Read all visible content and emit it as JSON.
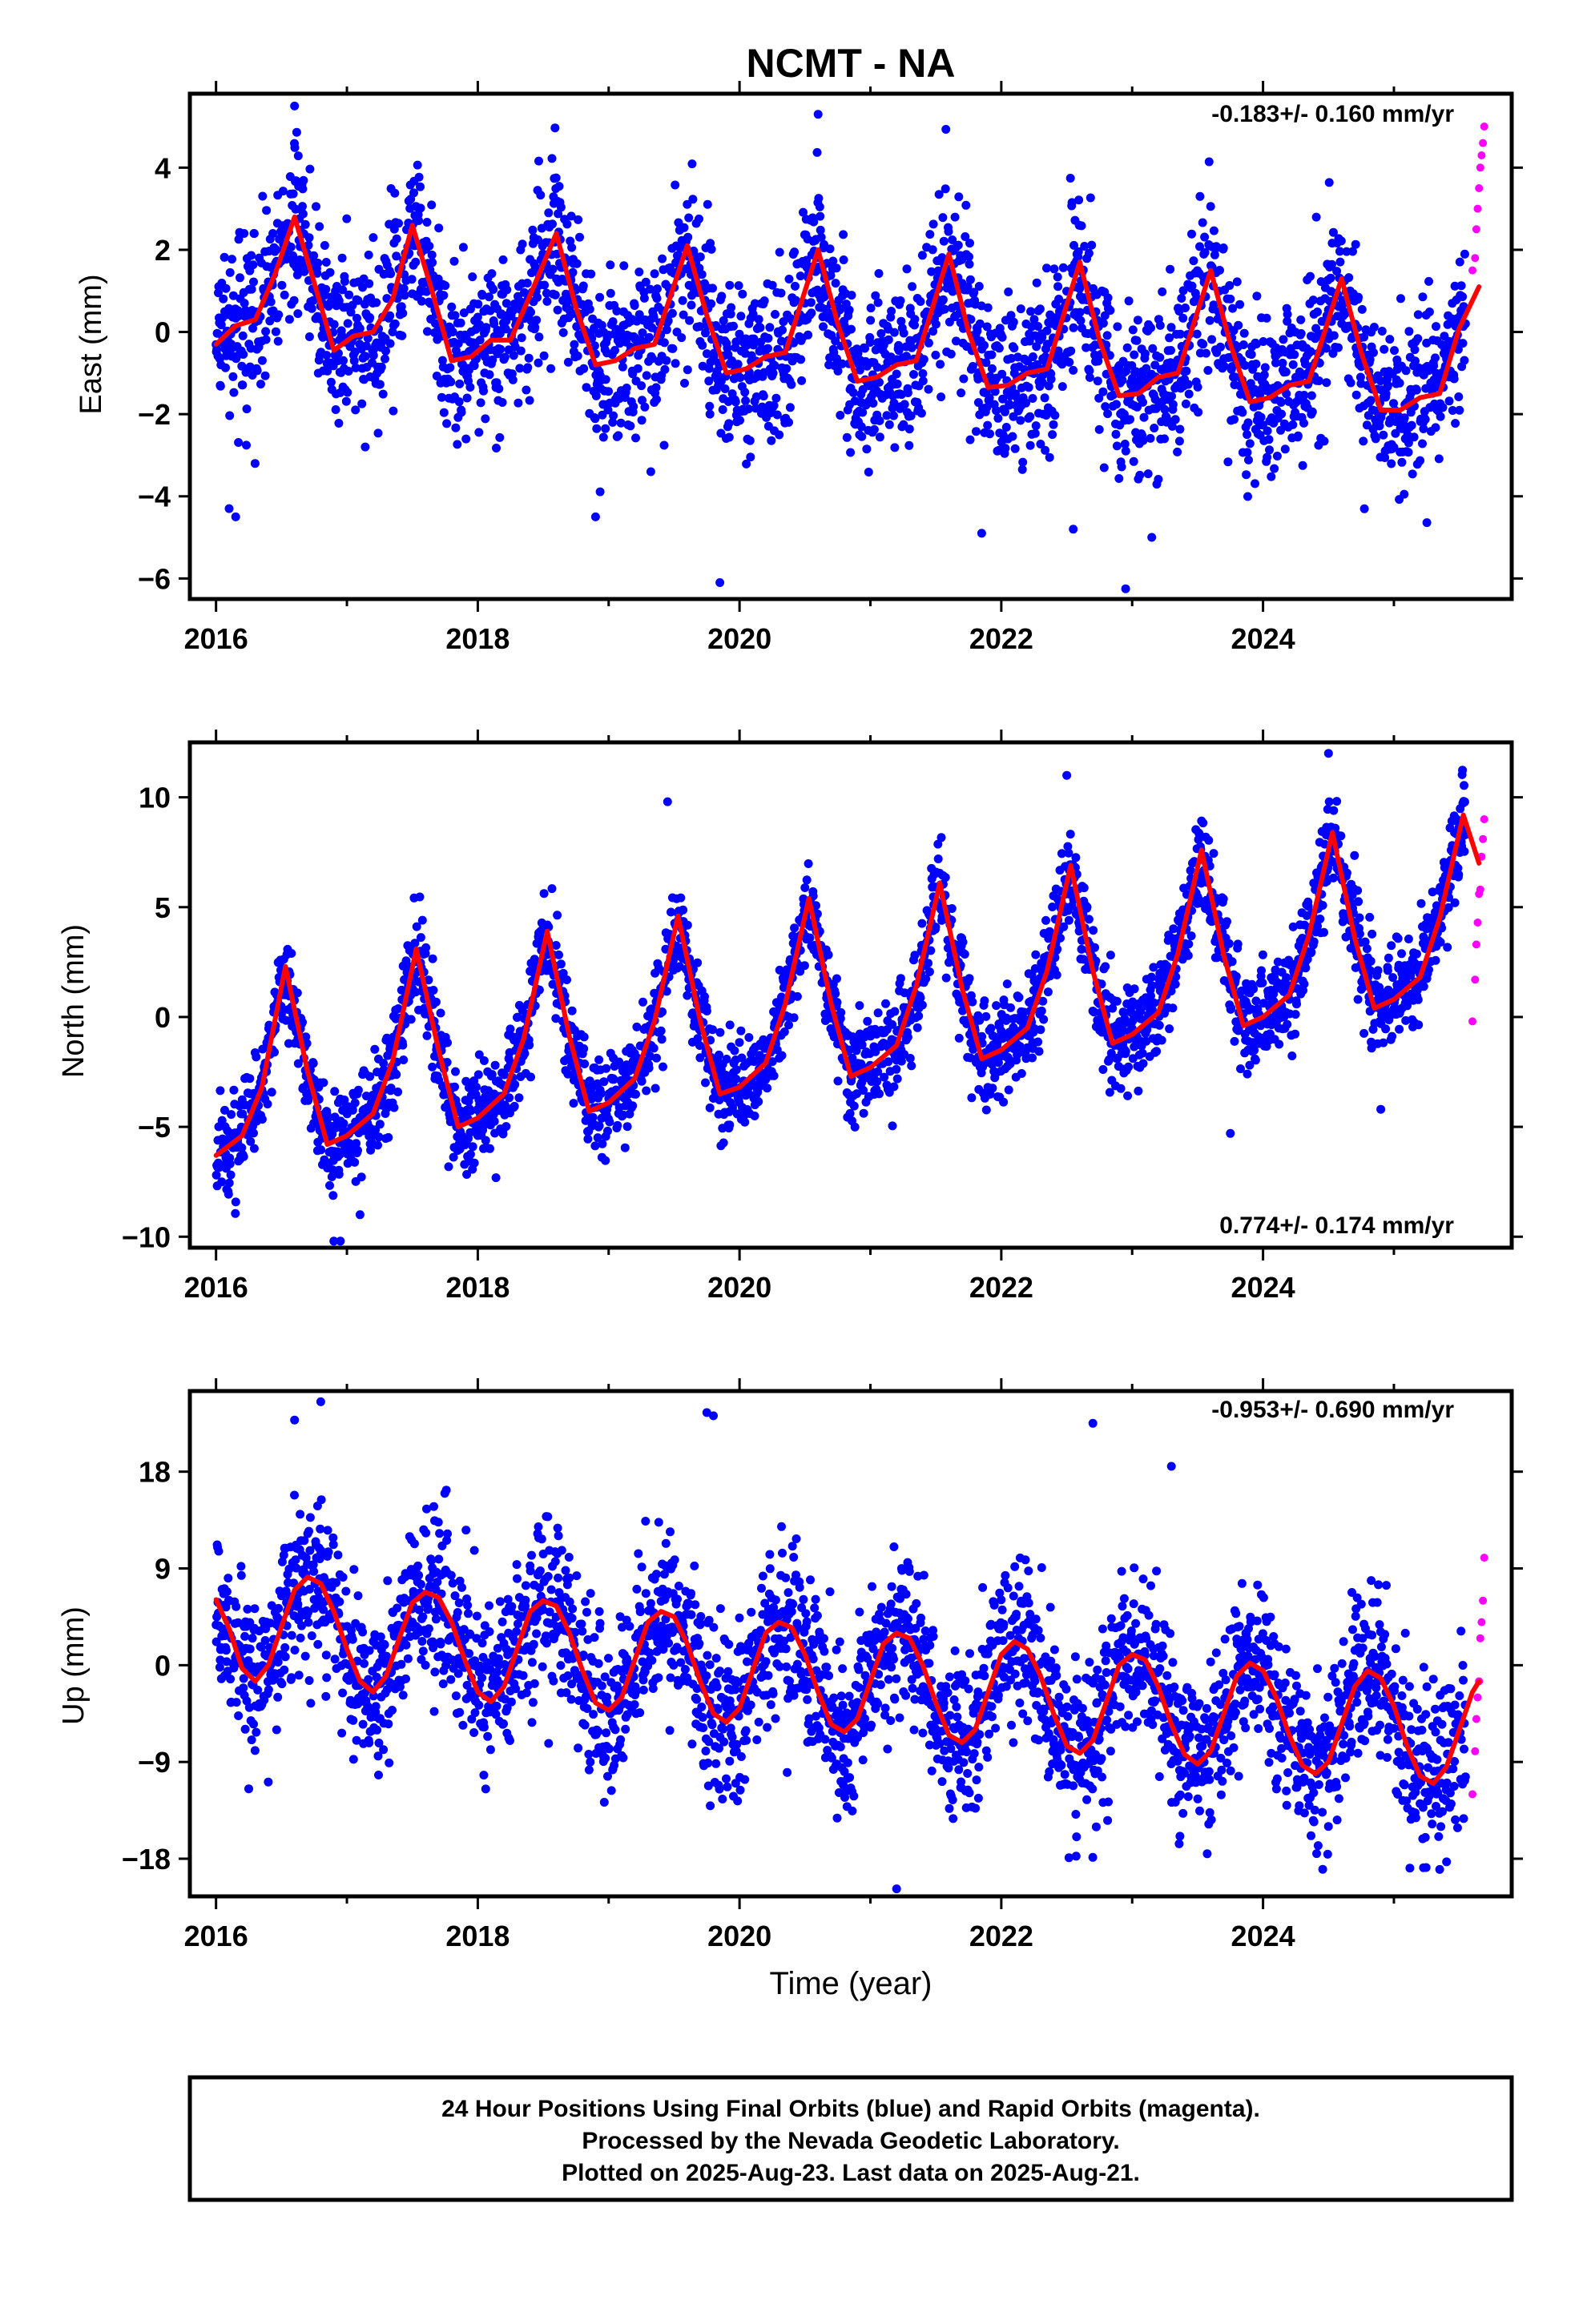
{
  "title": "NCMT - NA",
  "footer": {
    "line1": "24 Hour Positions Using Final Orbits (blue) and Rapid Orbits (magenta).",
    "line2": "Processed by the Nevada Geodetic Laboratory.",
    "line3": "Plotted on 2025-Aug-23. Last data on 2025-Aug-21."
  },
  "colors": {
    "final_orbits": "#0000ff",
    "rapid_orbits": "#ff00ff",
    "model": "#ff0000"
  },
  "chart_data": [
    {
      "type": "scatter",
      "ylabel": "East (mm)",
      "xlabel": "",
      "rate": "-0.183+/- 0.160 mm/yr",
      "rate_position": "top-right",
      "xlim": [
        2015.8,
        2025.9
      ],
      "ylim": [
        -6.5,
        5.8
      ],
      "xticks": [
        2016,
        2018,
        2020,
        2022,
        2024
      ],
      "yticks": [
        -6,
        -4,
        -2,
        0,
        2,
        4
      ],
      "ytick_labels": [
        "−6",
        "−4",
        "−2",
        "0",
        "2",
        "4"
      ],
      "series": [
        {
          "role": "final orbits",
          "color": "#0000ff",
          "x_range": [
            2016.0,
            2025.55
          ],
          "approx_points": 3300,
          "annual_amplitude": 1.6,
          "peak_month": 8.0,
          "semiannual_amplitude": 0.6,
          "scatter_sd": 1.0,
          "outliers": [
            [
              2016.15,
              -4.5
            ],
            [
              2016.1,
              -4.3
            ],
            [
              2019.85,
              -6.1
            ],
            [
              2022.95,
              -6.25
            ],
            [
              2021.85,
              -4.9
            ],
            [
              2018.9,
              -4.5
            ],
            [
              2022.55,
              -4.8
            ],
            [
              2023.15,
              -5.0
            ],
            [
              2016.6,
              5.5
            ],
            [
              2020.6,
              5.3
            ]
          ]
        },
        {
          "role": "rapid orbits",
          "color": "#ff00ff",
          "x": [
            2025.6,
            2025.62,
            2025.63,
            2025.64,
            2025.65,
            2025.66,
            2025.67,
            2025.68,
            2025.69
          ],
          "y": [
            1.5,
            1.8,
            2.5,
            3.0,
            3.5,
            4.0,
            4.3,
            4.6,
            5.0
          ]
        }
      ],
      "model_curve": {
        "color": "#ff0000",
        "x": [
          2016.0,
          2016.15,
          2016.3,
          2016.45,
          2016.6,
          2016.75,
          2016.9,
          2017.05,
          2017.2,
          2017.35,
          2017.5,
          2017.65,
          2017.8,
          2017.95,
          2018.1,
          2018.25,
          2018.4,
          2018.6,
          2018.75,
          2018.9,
          2019.05,
          2019.2,
          2019.35,
          2019.6,
          2019.75,
          2019.9,
          2020.05,
          2020.2,
          2020.35,
          2020.6,
          2020.75,
          2020.9,
          2021.05,
          2021.2,
          2021.35,
          2021.6,
          2021.75,
          2021.9,
          2022.05,
          2022.2,
          2022.35,
          2022.6,
          2022.75,
          2022.9,
          2023.05,
          2023.2,
          2023.35,
          2023.6,
          2023.75,
          2023.9,
          2024.05,
          2024.2,
          2024.35,
          2024.6,
          2024.75,
          2024.9,
          2025.05,
          2025.2,
          2025.35,
          2025.5,
          2025.65
        ],
        "y": [
          -0.3,
          0.15,
          0.3,
          1.4,
          2.8,
          1.2,
          -0.45,
          -0.1,
          0.0,
          0.8,
          2.6,
          1.0,
          -0.7,
          -0.6,
          -0.2,
          -0.2,
          0.9,
          2.4,
          0.6,
          -0.8,
          -0.7,
          -0.4,
          -0.3,
          2.1,
          0.4,
          -1.0,
          -0.9,
          -0.6,
          -0.5,
          2.0,
          0.2,
          -1.2,
          -1.1,
          -0.8,
          -0.7,
          1.9,
          0.0,
          -1.35,
          -1.3,
          -1.0,
          -0.9,
          1.7,
          -0.2,
          -1.55,
          -1.5,
          -1.1,
          -1.0,
          1.5,
          -0.3,
          -1.7,
          -1.6,
          -1.3,
          -1.2,
          1.3,
          -0.5,
          -1.9,
          -1.9,
          -1.6,
          -1.5,
          0.1,
          1.1
        ]
      }
    },
    {
      "type": "scatter",
      "ylabel": "North (mm)",
      "xlabel": "",
      "rate": "0.774+/- 0.174 mm/yr",
      "rate_position": "bottom-right",
      "xlim": [
        2015.8,
        2025.9
      ],
      "ylim": [
        -10.5,
        12.5
      ],
      "xticks": [
        2016,
        2018,
        2020,
        2022,
        2024
      ],
      "yticks": [
        -10,
        -5,
        0,
        5,
        10
      ],
      "ytick_labels": [
        "−10",
        "−5",
        "0",
        "5",
        "10"
      ],
      "series": [
        {
          "role": "final orbits",
          "color": "#0000ff",
          "x_range": [
            2016.0,
            2025.55
          ],
          "approx_points": 3300,
          "annual_amplitude": 4.2,
          "peak_month": 7.0,
          "semiannual_amplitude": 1.0,
          "scatter_sd": 1.1,
          "outliers": [
            [
              2016.9,
              -10.2
            ],
            [
              2016.95,
              -10.2
            ],
            [
              2017.1,
              -9.0
            ],
            [
              2019.45,
              9.8
            ],
            [
              2022.5,
              11.0
            ],
            [
              2024.5,
              12.0
            ],
            [
              2024.9,
              -4.2
            ],
            [
              2023.75,
              -5.3
            ]
          ]
        },
        {
          "role": "rapid orbits",
          "color": "#ff00ff",
          "x": [
            2025.6,
            2025.62,
            2025.63,
            2025.64,
            2025.65,
            2025.66,
            2025.67,
            2025.68,
            2025.69
          ],
          "y": [
            -0.2,
            1.7,
            3.3,
            4.3,
            5.6,
            5.8,
            7.3,
            8.1,
            9.0
          ]
        }
      ],
      "model_curve": {
        "color": "#ff0000",
        "x": [
          2016.0,
          2016.2,
          2016.35,
          2016.53,
          2016.7,
          2016.85,
          2017.0,
          2017.2,
          2017.35,
          2017.53,
          2017.7,
          2017.85,
          2018.0,
          2018.2,
          2018.35,
          2018.53,
          2018.7,
          2018.85,
          2019.0,
          2019.2,
          2019.35,
          2019.53,
          2019.7,
          2019.85,
          2020.0,
          2020.2,
          2020.35,
          2020.53,
          2020.7,
          2020.85,
          2021.0,
          2021.2,
          2021.35,
          2021.53,
          2021.7,
          2021.85,
          2022.0,
          2022.2,
          2022.35,
          2022.53,
          2022.7,
          2022.85,
          2023.0,
          2023.2,
          2023.35,
          2023.53,
          2023.7,
          2023.85,
          2024.0,
          2024.2,
          2024.35,
          2024.53,
          2024.7,
          2024.85,
          2025.0,
          2025.2,
          2025.35,
          2025.53,
          2025.65
        ],
        "y": [
          -6.3,
          -5.4,
          -3.2,
          2.3,
          -2.5,
          -5.8,
          -5.4,
          -4.4,
          -2.0,
          3.1,
          -1.5,
          -5.0,
          -4.6,
          -3.5,
          -1.0,
          3.9,
          -0.9,
          -4.3,
          -3.9,
          -2.8,
          -0.2,
          4.6,
          -0.2,
          -3.5,
          -3.2,
          -2.1,
          0.6,
          5.4,
          0.6,
          -2.7,
          -2.3,
          -1.3,
          1.4,
          6.1,
          1.3,
          -1.9,
          -1.5,
          -0.5,
          2.1,
          6.9,
          2.1,
          -1.2,
          -0.8,
          0.2,
          2.9,
          7.6,
          2.8,
          -0.4,
          0.0,
          1.0,
          3.7,
          8.4,
          3.6,
          0.4,
          0.8,
          1.8,
          4.5,
          9.2,
          7.0
        ]
      }
    },
    {
      "type": "scatter",
      "ylabel": "Up (mm)",
      "xlabel": "Time (year)",
      "rate": "-0.953+/- 0.690 mm/yr",
      "rate_position": "top-right",
      "xlim": [
        2015.8,
        2025.9
      ],
      "ylim": [
        -21.5,
        25.5
      ],
      "xticks": [
        2016,
        2018,
        2020,
        2022,
        2024
      ],
      "yticks": [
        -18,
        -9,
        0,
        9,
        18
      ],
      "ytick_labels": [
        "−18",
        "−9",
        "0",
        "9",
        "18"
      ],
      "series": [
        {
          "role": "final orbits",
          "color": "#0000ff",
          "x_range": [
            2016.0,
            2025.55
          ],
          "approx_points": 3300,
          "annual_amplitude": 5.5,
          "peak_month": 10.0,
          "semiannual_amplitude": 0.0,
          "scatter_sd": 3.8,
          "outliers": [
            [
              2016.8,
              24.5
            ],
            [
              2016.6,
              22.8
            ],
            [
              2019.75,
              23.5
            ],
            [
              2019.8,
              23.2
            ],
            [
              2022.7,
              22.5
            ],
            [
              2021.2,
              -20.8
            ],
            [
              2025.35,
              -19.0
            ],
            [
              2023.3,
              18.5
            ],
            [
              2016.25,
              -11.5
            ]
          ]
        },
        {
          "role": "rapid orbits",
          "color": "#ff00ff",
          "x": [
            2025.6,
            2025.62,
            2025.63,
            2025.64,
            2025.65,
            2025.66,
            2025.67,
            2025.68,
            2025.69
          ],
          "y": [
            -12.0,
            -8.0,
            -5.0,
            -3.0,
            -1.5,
            2.5,
            4.0,
            6.0,
            10.0
          ]
        }
      ],
      "model_curve": {
        "color": "#ff0000",
        "x": [
          2016.0,
          2016.1,
          2016.2,
          2016.3,
          2016.4,
          2016.5,
          2016.6,
          2016.7,
          2016.8,
          2016.9,
          2017.0,
          2017.1,
          2017.2,
          2017.3,
          2017.4,
          2017.5,
          2017.6,
          2017.7,
          2017.8,
          2017.9,
          2018.0,
          2018.1,
          2018.2,
          2018.3,
          2018.4,
          2018.5,
          2018.6,
          2018.7,
          2018.8,
          2018.9,
          2019.0,
          2019.1,
          2019.2,
          2019.3,
          2019.4,
          2019.5,
          2019.6,
          2019.7,
          2019.8,
          2019.9,
          2020.0,
          2020.1,
          2020.2,
          2020.3,
          2020.4,
          2020.5,
          2020.6,
          2020.7,
          2020.8,
          2020.9,
          2021.0,
          2021.1,
          2021.2,
          2021.3,
          2021.4,
          2021.5,
          2021.6,
          2021.7,
          2021.8,
          2021.9,
          2022.0,
          2022.1,
          2022.2,
          2022.3,
          2022.4,
          2022.5,
          2022.6,
          2022.7,
          2022.8,
          2022.9,
          2023.0,
          2023.1,
          2023.2,
          2023.3,
          2023.4,
          2023.5,
          2023.6,
          2023.7,
          2023.8,
          2023.9,
          2024.0,
          2024.1,
          2024.2,
          2024.3,
          2024.4,
          2024.5,
          2024.6,
          2024.7,
          2024.8,
          2024.9,
          2025.0,
          2025.1,
          2025.2,
          2025.3,
          2025.4,
          2025.5,
          2025.6,
          2025.65
        ],
        "y": [
          6.1,
          3.4,
          -0.3,
          -1.5,
          0.0,
          3.6,
          7.0,
          8.2,
          7.6,
          5.0,
          1.5,
          -1.5,
          -2.5,
          -1.0,
          2.5,
          5.8,
          6.8,
          6.3,
          4.0,
          0.5,
          -2.5,
          -3.4,
          -2.0,
          1.5,
          5.0,
          6.0,
          5.5,
          3.0,
          -0.5,
          -3.5,
          -4.2,
          -3.0,
          0.5,
          4.0,
          5.0,
          4.5,
          2.0,
          -1.5,
          -4.5,
          -5.3,
          -4.0,
          -0.5,
          3.0,
          4.0,
          3.5,
          1.0,
          -2.5,
          -5.5,
          -6.2,
          -5.0,
          -1.5,
          2.0,
          3.0,
          2.5,
          0.0,
          -3.5,
          -6.5,
          -7.2,
          -6.0,
          -2.5,
          1.0,
          2.2,
          1.5,
          -1.0,
          -4.5,
          -7.5,
          -8.2,
          -7.0,
          -3.5,
          0.0,
          1.0,
          0.5,
          -2.0,
          -5.5,
          -8.3,
          -9.2,
          -8.0,
          -4.5,
          -1.0,
          0.2,
          -0.5,
          -3.0,
          -6.5,
          -9.3,
          -10.1,
          -9.0,
          -5.5,
          -2.0,
          -0.5,
          -1.2,
          -3.8,
          -7.5,
          -10.3,
          -11.0,
          -9.5,
          -6.0,
          -2.5,
          -1.5
        ]
      }
    }
  ]
}
